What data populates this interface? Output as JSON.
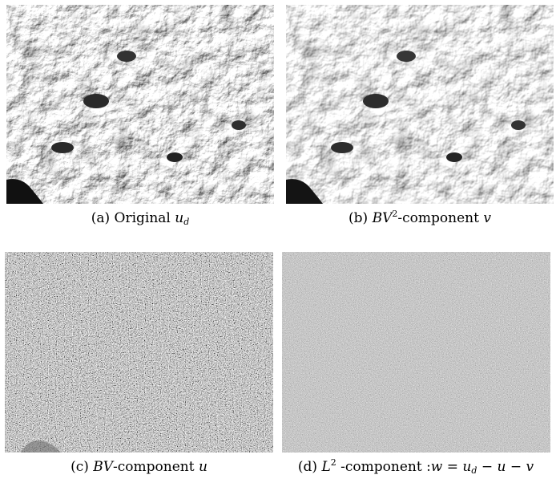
{
  "figure": {
    "panels": [
      {
        "id": "a",
        "label": "(a)",
        "text": "Original",
        "math_base": "u",
        "math_sub": "d",
        "image": "photo-texture-original"
      },
      {
        "id": "b",
        "label": "(b)",
        "math_base": "BV",
        "math_sup": "2",
        "text": "-component",
        "math_var": "v",
        "image": "photo-texture-bv2-component"
      },
      {
        "id": "c",
        "label": "(c)",
        "math_base": "BV",
        "text": "-component",
        "math_var": "u",
        "image": "noise-texture-bv-component"
      },
      {
        "id": "d",
        "label": "(d)",
        "math_base": "L",
        "math_sup": "2",
        "text": " -component :",
        "eq_lhs": "w",
        "eq_sign": "=",
        "eq_u": "u",
        "eq_sub": "d",
        "eq_minus1": "−",
        "eq_u2": "u",
        "eq_minus2": "−",
        "eq_v": "v",
        "image": "noise-texture-l2-component"
      }
    ]
  }
}
